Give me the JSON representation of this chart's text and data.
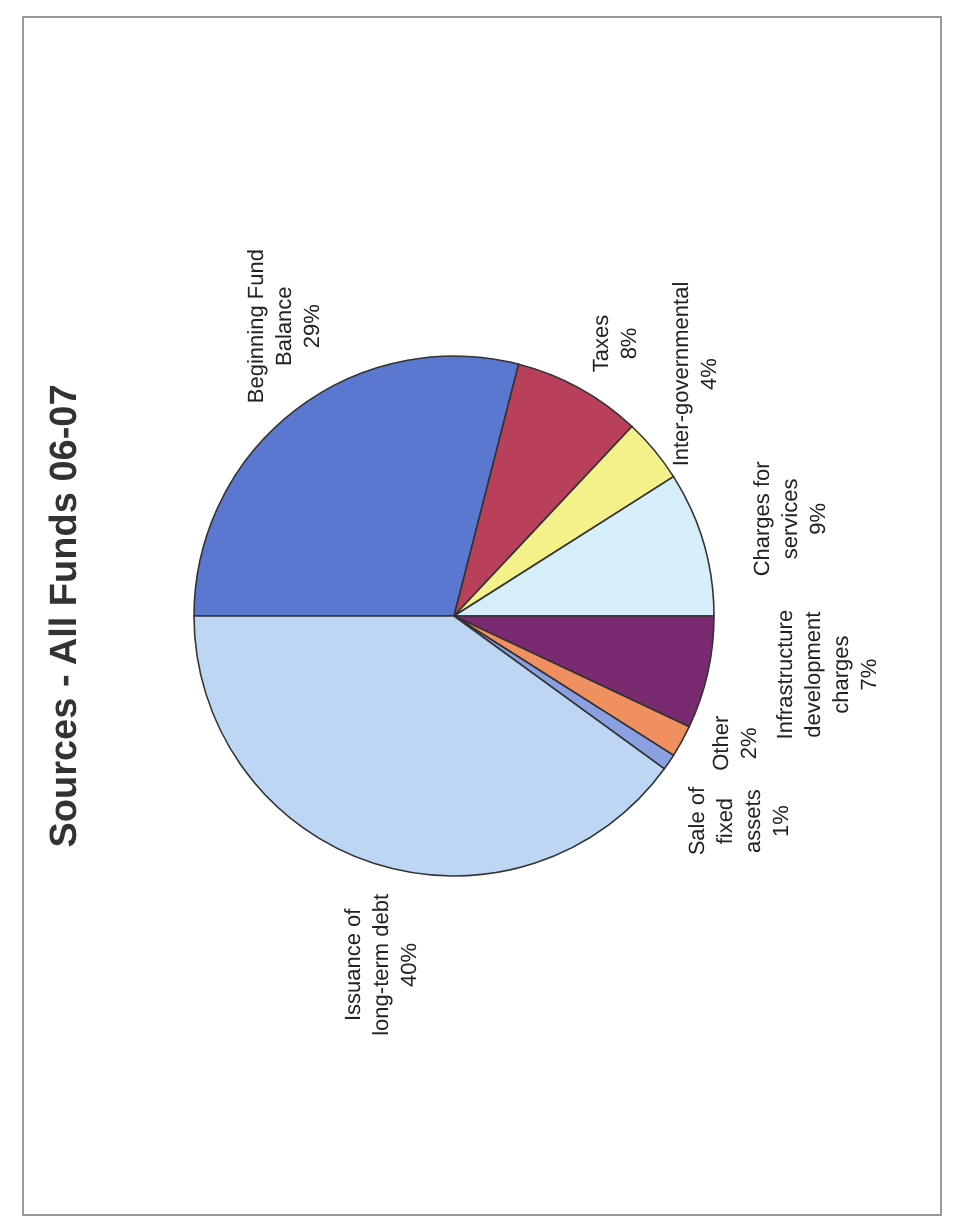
{
  "chart_data": {
    "type": "pie",
    "title": "Sources - All Funds 06-07",
    "categories": [
      "Beginning Fund Balance",
      "Taxes",
      "Inter-governmental",
      "Charges for services",
      "Infrastructure development charges",
      "Other",
      "Sale of fixed assets",
      "Issuance of long-term debt"
    ],
    "values": [
      29,
      8,
      4,
      9,
      7,
      2,
      1,
      40
    ],
    "value_labels": [
      "29%",
      "8%",
      "4%",
      "9%",
      "7%",
      "2%",
      "1%",
      "40%"
    ],
    "colors": [
      "#5b78d0",
      "#b8405a",
      "#f4f08a",
      "#d6eefa",
      "#7a2a70",
      "#f09060",
      "#8aa0e0",
      "#bcd6f4"
    ]
  }
}
